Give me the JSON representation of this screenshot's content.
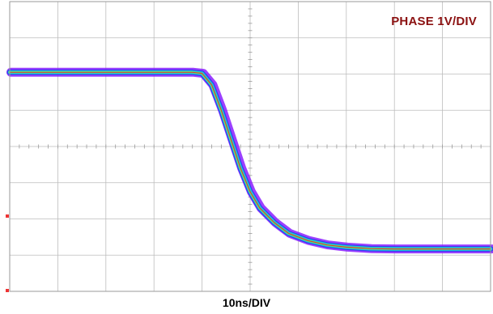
{
  "chart_data": {
    "type": "line",
    "title": "",
    "channel_label": "PHASE 1V/DIV",
    "xlabel": "10ns/DIV",
    "ylabel": "",
    "x_divisions": 10,
    "y_divisions": 8,
    "x_unit": "ns",
    "x_per_div": 10,
    "y_unit": "V",
    "y_per_div": 1,
    "xlim": [
      0,
      100
    ],
    "ylim": [
      -4,
      4
    ],
    "grid": true,
    "waveform": {
      "description_shape": "falling edge",
      "x": [
        0,
        38,
        40,
        42,
        44,
        46,
        48,
        50,
        52,
        55,
        58,
        62,
        66,
        70,
        75,
        80,
        90,
        100
      ],
      "y": [
        2.05,
        2.05,
        2.02,
        1.7,
        1.0,
        0.2,
        -0.6,
        -1.25,
        -1.7,
        -2.1,
        -2.4,
        -2.6,
        -2.72,
        -2.78,
        -2.82,
        -2.83,
        -2.83,
        -2.83
      ]
    },
    "colors": {
      "persistence_outer": "#8b1fff",
      "persistence_mid": "#2a3cf0",
      "persistence_core": "#18d6d0",
      "persistence_hot": "#7cf05a",
      "persistence_trace": "#e0302a",
      "grid": "#bdbdbd",
      "label": "#8b1111"
    }
  }
}
